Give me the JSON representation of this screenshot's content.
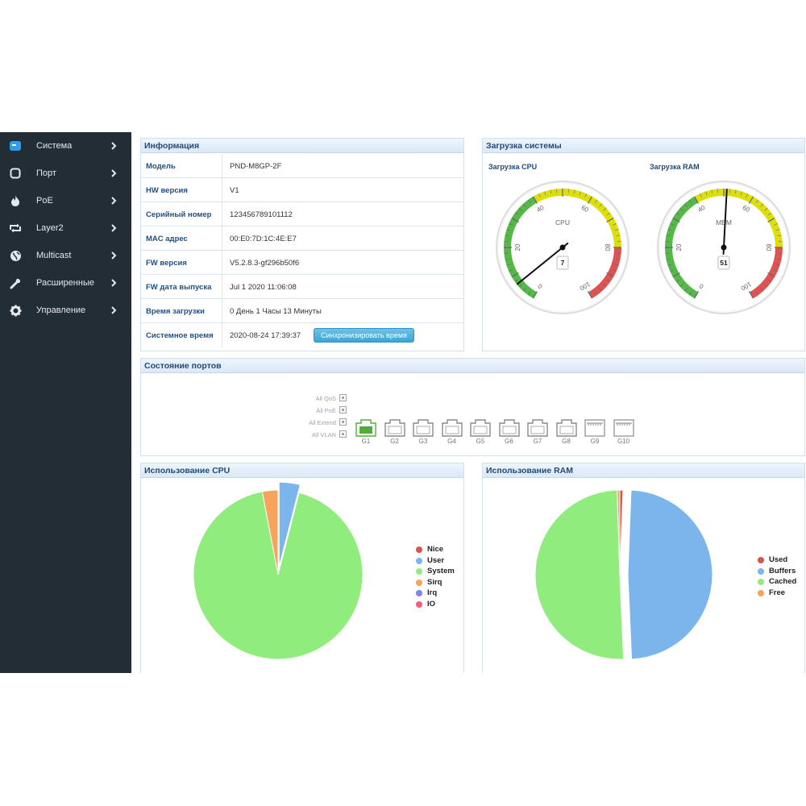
{
  "sidebar": {
    "items": [
      {
        "label": "Система",
        "icon": "monitor-icon"
      },
      {
        "label": "Порт",
        "icon": "port-square-icon"
      },
      {
        "label": "PoE",
        "icon": "flame-icon"
      },
      {
        "label": "Layer2",
        "icon": "swap-arrows-icon"
      },
      {
        "label": "Multicast",
        "icon": "globe-icon"
      },
      {
        "label": "Расширенные",
        "icon": "wrench-icon"
      },
      {
        "label": "Управление",
        "icon": "gear-icon"
      }
    ]
  },
  "info": {
    "title": "Информация",
    "rows": [
      {
        "key": "Модель",
        "value": "PND-M8GP-2F"
      },
      {
        "key": "HW версия",
        "value": "V1"
      },
      {
        "key": "Серийный номер",
        "value": "123456789101112"
      },
      {
        "key": "MAC адрес",
        "value": " 00:E0:7D:1C:4E:E7"
      },
      {
        "key": "FW версия",
        "value": "V5.2.8.3-gf296b50f6"
      },
      {
        "key": "FW дата выпуска",
        "value": "Jul 1 2020 11:06:08"
      },
      {
        "key": "Время загрузки",
        "value": "0 День 1 Часы 13 Минуты"
      },
      {
        "key": "Системное время",
        "value": "2020-08-24 17:39:37"
      }
    ],
    "sync_button": "Синхронизировать время"
  },
  "load": {
    "title": "Загрузка системы",
    "cpu": {
      "label": "Загрузка CPU",
      "name": "CPU",
      "value": 7
    },
    "ram": {
      "label": "Загрузка RAM",
      "name": "MEM",
      "value": 51
    },
    "ticks": [
      "0",
      "20",
      "40",
      "60",
      "80",
      "100"
    ],
    "colors": {
      "green": "#55b848",
      "yellow": "#dddf0d",
      "red": "#df5353"
    }
  },
  "ports": {
    "title": "Состояние портов",
    "toggles": [
      "All QoS",
      "All PoE",
      "All Extend",
      "All VLAN"
    ],
    "list": [
      {
        "label": "G1",
        "type": "rj45",
        "active": true
      },
      {
        "label": "G2",
        "type": "rj45",
        "active": false
      },
      {
        "label": "G3",
        "type": "rj45",
        "active": false
      },
      {
        "label": "G4",
        "type": "rj45",
        "active": false
      },
      {
        "label": "G5",
        "type": "rj45",
        "active": false
      },
      {
        "label": "G6",
        "type": "rj45",
        "active": false
      },
      {
        "label": "G7",
        "type": "rj45",
        "active": false
      },
      {
        "label": "G8",
        "type": "rj45",
        "active": false
      },
      {
        "label": "G9",
        "type": "sfp",
        "active": false
      },
      {
        "label": "G10",
        "type": "sfp",
        "active": false
      }
    ]
  },
  "cpu_usage": {
    "title": "Использование CPU",
    "legend": [
      {
        "label": "Nice",
        "color": "#d9534f"
      },
      {
        "label": "User",
        "color": "#7cb5ec"
      },
      {
        "label": "System",
        "color": "#90ed7d"
      },
      {
        "label": "Sirq",
        "color": "#f7a35c"
      },
      {
        "label": "Irq",
        "color": "#8085e9"
      },
      {
        "label": "IO",
        "color": "#f15c80"
      }
    ]
  },
  "ram_usage": {
    "title": "Использование RAM",
    "legend": [
      {
        "label": "Used",
        "color": "#d9534f"
      },
      {
        "label": "Buffers",
        "color": "#7cb5ec"
      },
      {
        "label": "Cached",
        "color": "#90ed7d"
      },
      {
        "label": "Free",
        "color": "#f7a35c"
      }
    ]
  },
  "chart_data": [
    {
      "type": "pie",
      "categories": [
        "Nice",
        "User",
        "System",
        "Sirq",
        "Irq",
        "IO"
      ],
      "values": [
        0,
        4,
        93,
        3,
        0,
        0
      ],
      "colors": [
        "#d9534f",
        "#7cb5ec",
        "#90ed7d",
        "#f7a35c",
        "#8085e9",
        "#f15c80"
      ],
      "exploded": "User",
      "legend": "right"
    },
    {
      "type": "pie",
      "categories": [
        "Used",
        "Buffers",
        "Cached",
        "Free"
      ],
      "values": [
        0.6,
        48.7,
        50.2,
        0.5
      ],
      "colors": [
        "#d9534f",
        "#7cb5ec",
        "#90ed7d",
        "#f7a35c"
      ],
      "exploded": "Buffers",
      "legend": "right"
    }
  ]
}
